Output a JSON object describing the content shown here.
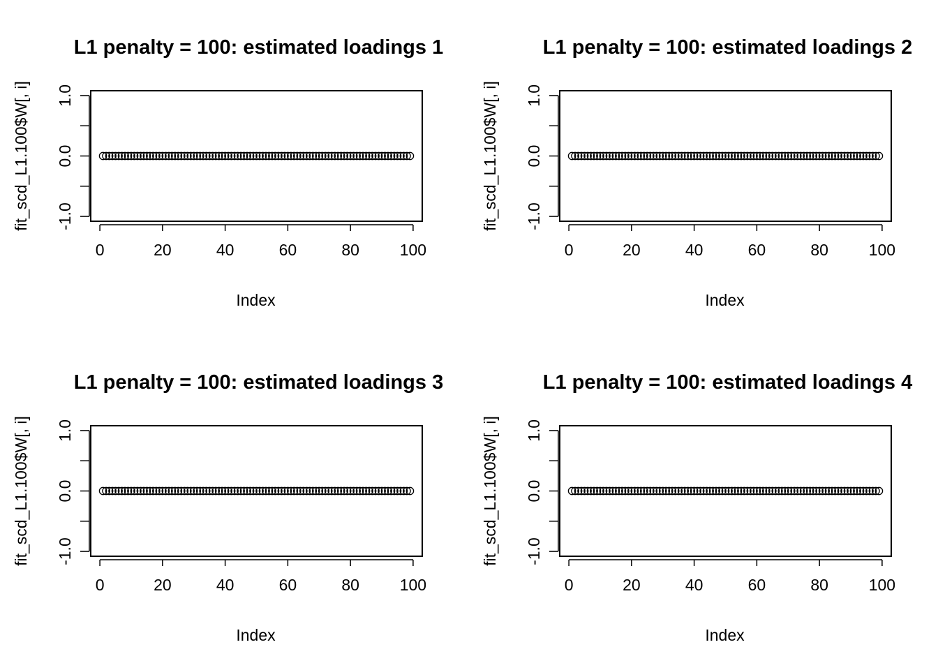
{
  "chart_data": [
    {
      "type": "scatter",
      "title": "L1 penalty = 100: estimated loadings 1",
      "xlabel": "Index",
      "ylabel": "fit_scd_L1.100$W[, i]",
      "xlim": [
        1,
        99
      ],
      "ylim": [
        -1.0,
        1.0
      ],
      "x_ticks": [
        0,
        20,
        40,
        60,
        80,
        100
      ],
      "x_tick_labels": [
        "0",
        "20",
        "40",
        "60",
        "80",
        "100"
      ],
      "y_ticks": [
        -1.0,
        -0.5,
        0.0,
        0.5,
        1.0
      ],
      "y_tick_labels": [
        "-1.0",
        "",
        "0.0",
        "",
        "1.0"
      ],
      "grid": false,
      "marker": "open-circle",
      "series": [
        {
          "x_range": [
            1,
            99
          ],
          "constant_y": 0
        }
      ]
    },
    {
      "type": "scatter",
      "title": "L1 penalty = 100: estimated loadings 2",
      "xlabel": "Index",
      "ylabel": "fit_scd_L1.100$W[, i]",
      "xlim": [
        1,
        99
      ],
      "ylim": [
        -1.0,
        1.0
      ],
      "x_ticks": [
        0,
        20,
        40,
        60,
        80,
        100
      ],
      "x_tick_labels": [
        "0",
        "20",
        "40",
        "60",
        "80",
        "100"
      ],
      "y_ticks": [
        -1.0,
        -0.5,
        0.0,
        0.5,
        1.0
      ],
      "y_tick_labels": [
        "-1.0",
        "",
        "0.0",
        "",
        "1.0"
      ],
      "grid": false,
      "marker": "open-circle",
      "series": [
        {
          "x_range": [
            1,
            99
          ],
          "constant_y": 0
        }
      ]
    },
    {
      "type": "scatter",
      "title": "L1 penalty = 100: estimated loadings 3",
      "xlabel": "Index",
      "ylabel": "fit_scd_L1.100$W[, i]",
      "xlim": [
        1,
        99
      ],
      "ylim": [
        -1.0,
        1.0
      ],
      "x_ticks": [
        0,
        20,
        40,
        60,
        80,
        100
      ],
      "x_tick_labels": [
        "0",
        "20",
        "40",
        "60",
        "80",
        "100"
      ],
      "y_ticks": [
        -1.0,
        -0.5,
        0.0,
        0.5,
        1.0
      ],
      "y_tick_labels": [
        "-1.0",
        "",
        "0.0",
        "",
        "1.0"
      ],
      "grid": false,
      "marker": "open-circle",
      "series": [
        {
          "x_range": [
            1,
            99
          ],
          "constant_y": 0
        }
      ]
    },
    {
      "type": "scatter",
      "title": "L1 penalty = 100: estimated loadings 4",
      "xlabel": "Index",
      "ylabel": "fit_scd_L1.100$W[, i]",
      "xlim": [
        1,
        99
      ],
      "ylim": [
        -1.0,
        1.0
      ],
      "x_ticks": [
        0,
        20,
        40,
        60,
        80,
        100
      ],
      "x_tick_labels": [
        "0",
        "20",
        "40",
        "60",
        "80",
        "100"
      ],
      "y_ticks": [
        -1.0,
        -0.5,
        0.0,
        0.5,
        1.0
      ],
      "y_tick_labels": [
        "-1.0",
        "",
        "0.0",
        "",
        "1.0"
      ],
      "grid": false,
      "marker": "open-circle",
      "series": [
        {
          "x_range": [
            1,
            99
          ],
          "constant_y": 0
        }
      ]
    }
  ]
}
